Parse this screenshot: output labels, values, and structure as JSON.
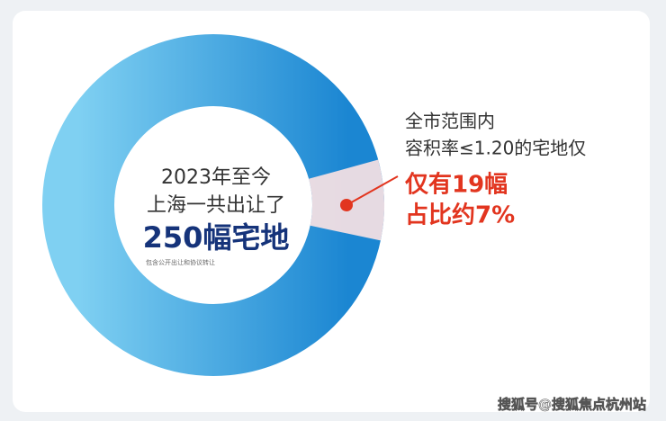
{
  "chart_data": {
    "type": "donut",
    "intro_lines": [
      "2023年至今",
      "上海一共出让了"
    ],
    "total": 250,
    "total_label": "250幅宅地",
    "note": "包含公开出让和协议转让",
    "callout_lines": [
      "全市范围内",
      "容积率≤1.20的宅地仅"
    ],
    "highlight": 19,
    "highlight_label": "仅有19幅",
    "share_label": "占比约7%",
    "colors": {
      "ring_light": "#7fd0f2",
      "ring_dark": "#1b86d2",
      "highlight": "#fde3e3",
      "accent": "#e2351f",
      "total_text": "#15337a"
    }
  },
  "watermark": "搜狐号@搜狐焦点杭州站"
}
